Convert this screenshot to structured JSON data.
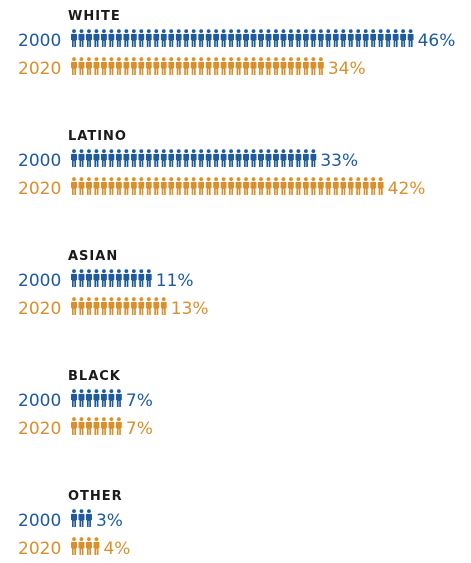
{
  "chart_data": {
    "type": "pictograph",
    "unit": "one figure = 1%",
    "colors": {
      "2000": "#1e5a9c",
      "2020": "#d98f2b"
    },
    "groups": [
      {
        "name": "WHITE",
        "rows": [
          {
            "year": "2000",
            "value": 46,
            "label": "46%"
          },
          {
            "year": "2020",
            "value": 34,
            "label": "34%"
          }
        ]
      },
      {
        "name": "LATINO",
        "rows": [
          {
            "year": "2000",
            "value": 33,
            "label": "33%"
          },
          {
            "year": "2020",
            "value": 42,
            "label": "42%"
          }
        ]
      },
      {
        "name": "ASIAN",
        "rows": [
          {
            "year": "2000",
            "value": 11,
            "label": "11%"
          },
          {
            "year": "2020",
            "value": 13,
            "label": "13%"
          }
        ]
      },
      {
        "name": "BLACK",
        "rows": [
          {
            "year": "2000",
            "value": 7,
            "label": "7%"
          },
          {
            "year": "2020",
            "value": 7,
            "label": "7%"
          }
        ]
      },
      {
        "name": "OTHER",
        "rows": [
          {
            "year": "2000",
            "value": 3,
            "label": "3%"
          },
          {
            "year": "2020",
            "value": 4,
            "label": "4%"
          }
        ]
      }
    ]
  }
}
